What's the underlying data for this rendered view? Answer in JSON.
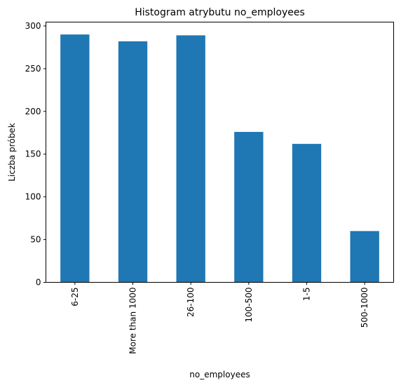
{
  "chart_data": {
    "type": "bar",
    "title": "Histogram atrybutu no_employees",
    "xlabel": "no_employees",
    "ylabel": "Liczba próbek",
    "categories": [
      "6-25",
      "More than 1000",
      "26-100",
      "100-500",
      "1-5",
      "500-1000"
    ],
    "values": [
      290,
      282,
      289,
      176,
      162,
      60
    ],
    "ylim": [
      0,
      304.5
    ],
    "yticks": [
      0,
      50,
      100,
      150,
      200,
      250,
      300
    ],
    "grid": false,
    "legend": "none",
    "bar_color": "#1f77b4"
  }
}
